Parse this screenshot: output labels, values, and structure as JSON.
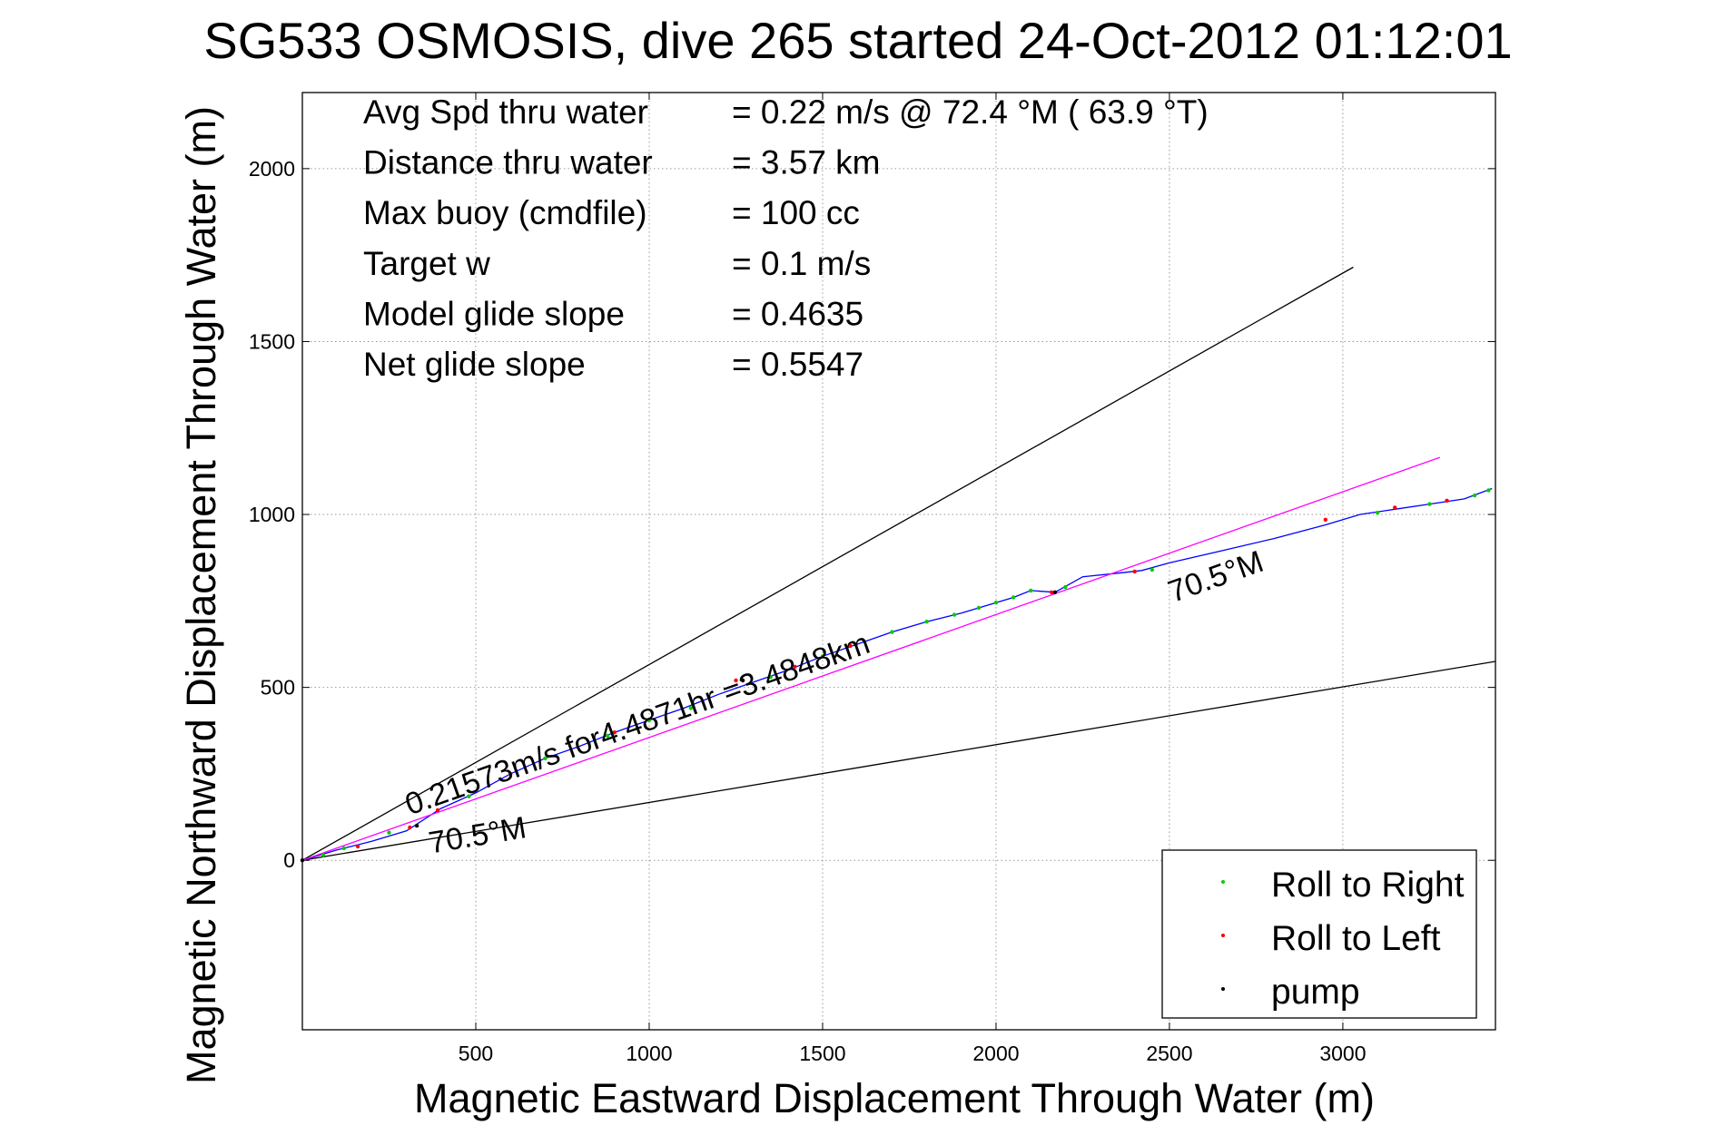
{
  "chart_data": {
    "type": "line",
    "title": "SG533 OSMOSIS, dive 265 started 24-Oct-2012 01:12:01",
    "xlabel": "Magnetic Eastward Displacement Through Water (m)",
    "ylabel": "Magnetic Northward Displacement Through Water (m)",
    "xlim": [
      0,
      3440
    ],
    "ylim": [
      -490,
      2220
    ],
    "xticks": [
      500,
      1000,
      1500,
      2000,
      2500,
      3000
    ],
    "yticks": [
      0,
      500,
      1000,
      1500,
      2000
    ],
    "grid": true,
    "legend_position": "bottom-right",
    "annotations": [
      {
        "label": "Avg Spd thru water",
        "value": "=  0.22 m/s @  72.4 °M ( 63.9 °T)"
      },
      {
        "label": "Distance thru water",
        "value": "=  3.57 km"
      },
      {
        "label": "Max buoy (cmdfile)",
        "value": "= 100 cc"
      },
      {
        "label": "Target w",
        "value": "= 0.1 m/s"
      },
      {
        "label": "Model glide slope",
        "value": "= 0.4635"
      },
      {
        "label": "Net glide slope",
        "value": "= 0.5547"
      }
    ],
    "series": [
      {
        "name": "track",
        "color": "#0000ff",
        "x": [
          0,
          100,
          200,
          300,
          400,
          500,
          600,
          700,
          800,
          900,
          1000,
          1100,
          1200,
          1300,
          1400,
          1500,
          1600,
          1700,
          1800,
          1900,
          2000,
          2050,
          2100,
          2170,
          2250,
          2350,
          2420,
          2500,
          2650,
          2800,
          2950,
          3050,
          3150,
          3250,
          3350,
          3430
        ],
        "y": [
          0,
          30,
          55,
          85,
          150,
          195,
          250,
          295,
          330,
          370,
          405,
          440,
          480,
          515,
          550,
          590,
          625,
          660,
          690,
          715,
          745,
          760,
          780,
          775,
          820,
          830,
          838,
          860,
          895,
          930,
          970,
          1000,
          1015,
          1030,
          1045,
          1075
        ]
      },
      {
        "name": "heading line",
        "color": "#ff00ff",
        "x": [
          0,
          3280
        ],
        "y": [
          0,
          1165
        ]
      },
      {
        "name": "bound upper",
        "color": "#000000",
        "x": [
          0,
          3030
        ],
        "y": [
          0,
          1715
        ]
      },
      {
        "name": "bound lower",
        "color": "#000000",
        "x": [
          0,
          3440
        ],
        "y": [
          0,
          575
        ]
      }
    ],
    "scatter": [
      {
        "name": "Roll to Right",
        "color": "#00cc00",
        "x": [
          60,
          120,
          250,
          480,
          700,
          880,
          1000,
          1120,
          1350,
          1500,
          1700,
          1800,
          1880,
          1950,
          2000,
          2050,
          2100,
          2200,
          2450,
          3100,
          3250,
          3380,
          3420
        ],
        "y": [
          15,
          35,
          80,
          185,
          295,
          360,
          405,
          440,
          530,
          590,
          660,
          690,
          710,
          730,
          745,
          760,
          780,
          790,
          840,
          1005,
          1030,
          1055,
          1070
        ]
      },
      {
        "name": "Roll to Left",
        "color": "#ff0000",
        "x": [
          160,
          310,
          390,
          600,
          900,
          1250,
          1420,
          1580,
          2160,
          2400,
          2950,
          3150,
          3300
        ],
        "y": [
          40,
          95,
          145,
          250,
          370,
          520,
          560,
          620,
          775,
          835,
          985,
          1020,
          1040
        ]
      },
      {
        "name": "pump",
        "color": "#000000",
        "x": [
          0,
          330,
          1270,
          2170
        ],
        "y": [
          0,
          100,
          520,
          775
        ]
      }
    ],
    "curve_labels": [
      {
        "text": "0.21573m/s for4.4871hr =3.4848km",
        "x": 310,
        "y": 130
      },
      {
        "text": "70.5°M",
        "x": 370,
        "y": 20
      },
      {
        "text": "70.5°M",
        "x": 2510,
        "y": 745
      }
    ]
  }
}
